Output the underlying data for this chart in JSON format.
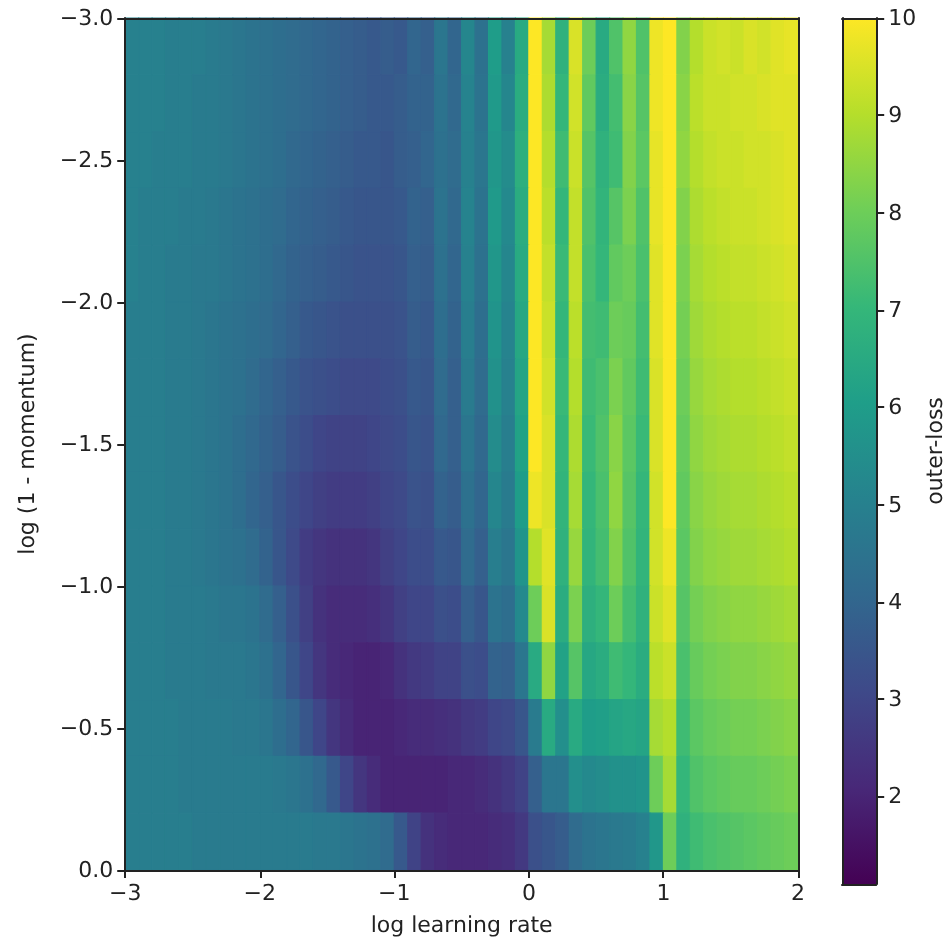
{
  "chart_data": {
    "type": "heatmap",
    "xlabel": "log learning rate",
    "ylabel": "log (1 - momentum)",
    "clabel": "outer-loss",
    "xlim": [
      -3,
      2
    ],
    "xticks": [
      {
        "value": -3,
        "label": "−3"
      },
      {
        "value": -2,
        "label": "−2"
      },
      {
        "value": -1,
        "label": "−1"
      },
      0,
      1,
      2
    ],
    "ylim": [
      0,
      -3
    ],
    "yticks": [
      {
        "value": 0,
        "label": "0.0"
      },
      {
        "value": -0.5,
        "label": "−0.5"
      },
      {
        "value": -1,
        "label": "−1.0"
      },
      {
        "value": -1.5,
        "label": "−1.5"
      },
      {
        "value": -2,
        "label": "−2.0"
      },
      {
        "value": -2.5,
        "label": "−2.5"
      },
      {
        "value": -3,
        "label": "−3.0"
      }
    ],
    "clim": [
      1.1,
      10
    ],
    "cticks": [
      2,
      3,
      4,
      5,
      6,
      7,
      8,
      9,
      10
    ],
    "cells": [
      [
        5.0,
        5.0,
        5.0,
        4.9,
        4.9,
        4.9,
        4.8,
        4.7,
        4.6,
        4.5,
        4.4,
        4.3,
        4.2,
        4.1,
        4.0,
        3.9,
        3.8,
        3.7,
        3.6,
        3.7,
        3.6,
        4.0,
        3.8,
        4.6,
        4.0,
        5.2,
        4.4,
        6.0,
        5.0,
        6.5,
        10,
        8.8,
        6.8,
        9.5,
        8.0,
        6.5,
        7.5,
        8.5,
        7.5,
        9.8,
        10,
        8.3,
        9.0,
        9.3,
        9.4,
        9.3,
        9.5,
        9.4,
        9.6,
        9.7
      ],
      [
        5.0,
        5.0,
        5.0,
        4.9,
        4.9,
        4.8,
        4.8,
        4.7,
        4.6,
        4.5,
        4.4,
        4.3,
        4.2,
        4.1,
        4.0,
        3.9,
        3.8,
        3.7,
        3.6,
        3.6,
        3.7,
        3.9,
        3.9,
        4.5,
        4.1,
        5.1,
        4.5,
        5.9,
        5.2,
        6.6,
        10,
        8.9,
        7.0,
        9.4,
        7.8,
        6.6,
        7.3,
        8.4,
        7.6,
        9.8,
        10,
        8.4,
        9.1,
        9.3,
        9.3,
        9.4,
        9.4,
        9.5,
        9.6,
        9.6
      ],
      [
        5.0,
        5.0,
        4.9,
        4.9,
        4.9,
        4.8,
        4.8,
        4.7,
        4.6,
        4.5,
        4.4,
        4.3,
        4.1,
        4.0,
        3.9,
        3.8,
        3.7,
        3.6,
        3.6,
        3.5,
        3.7,
        3.8,
        4.0,
        4.4,
        4.2,
        5.0,
        4.6,
        5.8,
        5.4,
        6.7,
        10,
        9.0,
        7.2,
        9.3,
        7.6,
        6.8,
        7.2,
        8.3,
        7.7,
        9.7,
        10,
        8.5,
        9.0,
        9.2,
        9.3,
        9.3,
        9.4,
        9.4,
        9.5,
        9.6
      ],
      [
        5.0,
        4.9,
        4.9,
        4.9,
        4.8,
        4.8,
        4.7,
        4.6,
        4.5,
        4.4,
        4.3,
        4.2,
        4.0,
        3.9,
        3.8,
        3.7,
        3.6,
        3.5,
        3.5,
        3.5,
        3.6,
        3.9,
        3.8,
        4.5,
        4.1,
        5.1,
        4.5,
        5.9,
        5.3,
        6.6,
        10,
        9.1,
        7.0,
        9.2,
        7.5,
        6.9,
        7.6,
        8.2,
        7.5,
        9.7,
        10,
        8.3,
        8.9,
        9.1,
        9.2,
        9.3,
        9.3,
        9.4,
        9.5,
        9.6
      ],
      [
        5.0,
        4.9,
        4.9,
        4.8,
        4.8,
        4.7,
        4.7,
        4.6,
        4.5,
        4.4,
        4.3,
        4.1,
        3.9,
        3.8,
        3.7,
        3.6,
        3.5,
        3.4,
        3.4,
        3.4,
        3.5,
        3.8,
        3.7,
        4.4,
        4.0,
        5.0,
        4.4,
        5.8,
        5.2,
        6.5,
        10,
        9.2,
        7.1,
        9.2,
        7.4,
        7.0,
        7.8,
        8.0,
        7.4,
        9.6,
        10,
        8.2,
        8.8,
        9.0,
        9.1,
        9.2,
        9.2,
        9.3,
        9.4,
        9.5
      ],
      [
        4.9,
        4.9,
        4.9,
        4.8,
        4.8,
        4.7,
        4.6,
        4.5,
        4.4,
        4.3,
        4.2,
        4.0,
        3.8,
        3.6,
        3.5,
        3.4,
        3.3,
        3.3,
        3.3,
        3.3,
        3.4,
        3.7,
        3.6,
        4.3,
        3.9,
        4.9,
        4.3,
        5.7,
        5.1,
        6.4,
        10,
        9.3,
        7.0,
        9.1,
        7.3,
        7.2,
        8.0,
        7.9,
        7.3,
        9.6,
        10,
        8.1,
        8.7,
        8.9,
        9.0,
        9.1,
        9.1,
        9.2,
        9.3,
        9.4
      ],
      [
        4.9,
        4.9,
        4.9,
        4.8,
        4.8,
        4.7,
        4.6,
        4.5,
        4.4,
        4.2,
        4.0,
        3.8,
        3.6,
        3.4,
        3.3,
        3.2,
        3.1,
        3.1,
        3.1,
        3.2,
        3.3,
        3.6,
        3.5,
        4.2,
        3.8,
        4.8,
        4.2,
        5.6,
        5.0,
        6.3,
        10,
        9.4,
        7.1,
        9.0,
        7.2,
        7.4,
        8.2,
        7.8,
        7.2,
        9.5,
        10,
        8.0,
        8.6,
        8.8,
        8.9,
        9.0,
        9.0,
        9.1,
        9.2,
        9.3
      ],
      [
        4.9,
        4.9,
        4.9,
        4.8,
        4.8,
        4.7,
        4.6,
        4.5,
        4.3,
        4.1,
        3.9,
        3.7,
        3.4,
        3.2,
        3.0,
        2.9,
        2.9,
        2.9,
        3.0,
        3.1,
        3.2,
        3.5,
        3.4,
        4.1,
        3.8,
        4.6,
        4.1,
        5.4,
        4.9,
        6.2,
        10,
        9.5,
        7.0,
        8.9,
        7.1,
        7.5,
        8.4,
        7.7,
        7.1,
        9.5,
        10,
        7.9,
        8.5,
        8.7,
        8.8,
        8.9,
        8.9,
        9.0,
        9.1,
        9.2
      ],
      [
        4.9,
        4.9,
        4.9,
        4.8,
        4.8,
        4.7,
        4.6,
        4.5,
        4.3,
        4.0,
        3.8,
        3.5,
        3.2,
        3.0,
        2.8,
        2.7,
        2.7,
        2.7,
        2.8,
        3.0,
        3.1,
        3.4,
        3.3,
        3.9,
        3.7,
        4.4,
        4.0,
        5.2,
        4.8,
        6.0,
        9.8,
        9.5,
        6.9,
        8.8,
        7.0,
        7.4,
        8.5,
        7.6,
        7.0,
        9.4,
        10,
        7.8,
        8.4,
        8.6,
        8.7,
        8.8,
        8.8,
        8.9,
        9.0,
        9.1
      ],
      [
        4.9,
        4.9,
        4.9,
        4.8,
        4.8,
        4.7,
        4.6,
        4.5,
        4.4,
        4.2,
        3.9,
        3.5,
        3.1,
        2.7,
        2.5,
        2.4,
        2.4,
        2.4,
        2.5,
        2.8,
        3.0,
        3.2,
        3.2,
        3.6,
        3.5,
        4.2,
        3.8,
        4.9,
        4.6,
        5.7,
        9.0,
        9.6,
        6.8,
        8.6,
        6.9,
        7.3,
        8.3,
        7.5,
        6.9,
        9.4,
        9.8,
        7.7,
        8.3,
        8.5,
        8.6,
        8.7,
        8.7,
        8.8,
        8.9,
        9.0
      ],
      [
        4.9,
        4.9,
        4.9,
        4.8,
        4.8,
        4.8,
        4.7,
        4.6,
        4.6,
        4.5,
        4.2,
        3.8,
        3.3,
        2.8,
        2.4,
        2.2,
        2.2,
        2.2,
        2.3,
        2.5,
        2.8,
        3.0,
        3.0,
        3.3,
        3.2,
        3.8,
        3.5,
        4.5,
        4.3,
        5.3,
        8.0,
        9.5,
        6.6,
        8.2,
        6.7,
        7.0,
        8.0,
        7.3,
        6.8,
        9.3,
        9.6,
        7.6,
        8.1,
        8.3,
        8.4,
        8.5,
        8.5,
        8.6,
        8.7,
        8.8
      ],
      [
        4.9,
        4.9,
        4.9,
        4.8,
        4.8,
        4.8,
        4.7,
        4.7,
        4.7,
        4.6,
        4.4,
        4.0,
        3.5,
        3.0,
        2.5,
        2.2,
        2.1,
        2.0,
        2.0,
        2.1,
        2.4,
        2.6,
        2.7,
        2.9,
        2.9,
        3.3,
        3.2,
        3.9,
        3.8,
        4.6,
        6.5,
        8.5,
        6.2,
        7.6,
        6.4,
        6.6,
        7.2,
        7.0,
        6.6,
        9.1,
        9.3,
        7.4,
        7.9,
        8.1,
        8.2,
        8.3,
        8.3,
        8.4,
        8.5,
        8.6
      ],
      [
        4.9,
        4.9,
        4.9,
        4.9,
        4.8,
        4.8,
        4.8,
        4.8,
        4.7,
        4.7,
        4.6,
        4.3,
        4.0,
        3.5,
        3.0,
        2.5,
        2.2,
        2.0,
        2.0,
        2.0,
        2.1,
        2.2,
        2.2,
        2.3,
        2.4,
        2.6,
        2.7,
        3.0,
        3.1,
        3.5,
        4.8,
        6.5,
        5.5,
        6.5,
        6.0,
        6.1,
        6.3,
        6.4,
        6.3,
        8.8,
        9.0,
        7.2,
        7.7,
        7.9,
        8.0,
        8.1,
        8.1,
        8.2,
        8.3,
        8.4
      ],
      [
        4.9,
        4.9,
        4.9,
        4.9,
        4.8,
        4.8,
        4.8,
        4.8,
        4.8,
        4.8,
        4.8,
        4.7,
        4.6,
        4.4,
        4.1,
        3.6,
        3.0,
        2.5,
        2.2,
        2.0,
        2.0,
        2.0,
        2.0,
        2.0,
        2.1,
        2.1,
        2.2,
        2.4,
        2.6,
        2.9,
        3.8,
        4.6,
        4.6,
        5.5,
        5.3,
        5.4,
        5.6,
        5.6,
        5.7,
        8.0,
        8.8,
        7.0,
        7.5,
        7.7,
        7.8,
        7.9,
        7.9,
        8.0,
        8.1,
        8.2
      ],
      [
        4.9,
        4.9,
        4.9,
        4.9,
        4.9,
        4.8,
        4.8,
        4.8,
        4.8,
        4.8,
        4.8,
        4.8,
        4.8,
        4.8,
        4.7,
        4.7,
        4.6,
        4.5,
        4.4,
        4.2,
        3.6,
        2.9,
        2.4,
        2.2,
        2.1,
        2.1,
        2.1,
        2.2,
        2.3,
        2.6,
        3.3,
        3.5,
        3.7,
        4.2,
        4.5,
        4.6,
        4.7,
        4.8,
        5.0,
        5.8,
        8.0,
        6.8,
        7.2,
        7.4,
        7.5,
        7.6,
        7.7,
        7.8,
        7.9,
        8.0
      ]
    ]
  }
}
